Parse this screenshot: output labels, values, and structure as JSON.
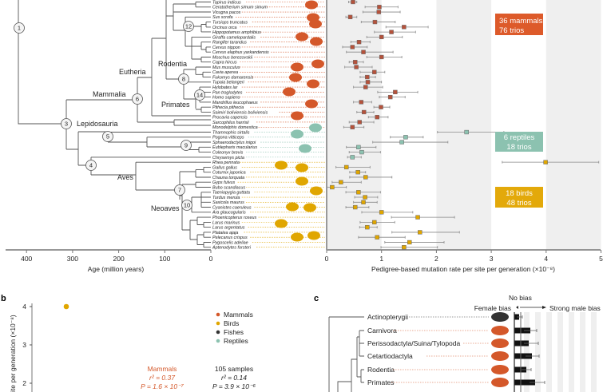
{
  "colors": {
    "mammals": "#d4582a",
    "reptiles": "#8cc2b0",
    "birds": "#e0a600",
    "fishes": "#333333",
    "box_mammal": "#b5523b",
    "band": "#efefef"
  },
  "panel_a": {
    "node_labels": [
      "1",
      "3",
      "4",
      "5",
      "6",
      "7",
      "8",
      "9",
      "10",
      "12",
      "14"
    ],
    "clades": {
      "eutheria": "Eutheria",
      "mammalia": "Mammalia",
      "lepidosauria": "Lepidosauria",
      "rodentia": "Rodentia",
      "primates": "Primates",
      "aves": "Aves",
      "neoaves": "Neoaves"
    },
    "age_axis": {
      "title": "Age (million years)",
      "ticks": [
        "400",
        "300",
        "200",
        "100",
        "0"
      ]
    },
    "badges": {
      "mammals": [
        "36 mammals",
        "76 trios"
      ],
      "reptiles": [
        "6 reptiles",
        "18 trios"
      ],
      "birds": [
        "18 birds",
        "48 trios"
      ]
    }
  },
  "chart_data": [
    {
      "type": "box",
      "xlabel": "Pedigree-based mutation rate per site per generation (×10⁻⁸)",
      "xlim": [
        0,
        5
      ],
      "xticks": [
        "0",
        "1",
        "2",
        "3",
        "4",
        "5"
      ],
      "grid": "alternating bands",
      "species": [
        {
          "name": "Tapirus indicus",
          "group": "mammals",
          "median": 0.48,
          "low": 0.4,
          "high": 0.55
        },
        {
          "name": "Ceratotherium simum simum",
          "group": "mammals",
          "median": 0.96,
          "low": 0.7,
          "high": 1.3
        },
        {
          "name": "Vicugna pacos",
          "group": "mammals",
          "median": 0.95,
          "low": 0.66,
          "high": 1.34
        },
        {
          "name": "Sus scrofa",
          "group": "mammals",
          "median": 0.43,
          "low": 0.35,
          "high": 0.55
        },
        {
          "name": "Tursiops truncatus",
          "group": "mammals",
          "median": 0.88,
          "low": 0.63,
          "high": 1.25
        },
        {
          "name": "Orcinus orca",
          "group": "mammals",
          "median": 1.41,
          "low": 1.08,
          "high": 1.85
        },
        {
          "name": "Hippopotamus amphibius",
          "group": "mammals",
          "median": 1.18,
          "low": 0.87,
          "high": 1.62
        },
        {
          "name": "Giraffa camelopardalis",
          "group": "mammals",
          "median": 1.0,
          "low": 0.73,
          "high": 1.38
        },
        {
          "name": "Rangifer tarandus",
          "group": "mammals",
          "median": 0.59,
          "low": 0.44,
          "high": 0.79
        },
        {
          "name": "Cervus nippon",
          "group": "mammals",
          "median": 0.47,
          "low": 0.29,
          "high": 0.74
        },
        {
          "name": "Cervus elaphus yarkandensis",
          "group": "mammals",
          "median": 0.67,
          "low": 0.36,
          "high": 1.21
        },
        {
          "name": "Moschus berezovskii",
          "group": "mammals",
          "median": 1.0,
          "low": 0.73,
          "high": 1.37
        },
        {
          "name": "Capra hircus",
          "group": "mammals",
          "median": 0.52,
          "low": 0.41,
          "high": 0.67
        },
        {
          "name": "Mus musculus",
          "group": "mammals",
          "median": 0.54,
          "low": 0.33,
          "high": 0.83
        },
        {
          "name": "Cavia aperea",
          "group": "mammals",
          "median": 0.87,
          "low": 0.61,
          "high": 1.06
        },
        {
          "name": "Fukomys damarensis",
          "group": "mammals",
          "median": 0.74,
          "low": 0.61,
          "high": 0.89
        },
        {
          "name": "Tupaia belangeri",
          "group": "mammals",
          "median": 0.75,
          "low": 0.61,
          "high": 1.0
        },
        {
          "name": "Hylobates lar",
          "group": "mammals",
          "median": 0.71,
          "low": 0.49,
          "high": 1.02
        },
        {
          "name": "Pan troglodytes",
          "group": "mammals",
          "median": 1.25,
          "low": 0.93,
          "high": 1.66
        },
        {
          "name": "Homo sapiens",
          "group": "mammals",
          "median": 1.16,
          "low": 0.96,
          "high": 1.43
        },
        {
          "name": "Mandrillus leucophaeus",
          "group": "mammals",
          "median": 0.63,
          "low": 0.49,
          "high": 0.82
        },
        {
          "name": "Pithecia pithecia",
          "group": "mammals",
          "median": 0.99,
          "low": 0.86,
          "high": 1.15
        },
        {
          "name": "Saimiri boliviensis boliviensis",
          "group": "mammals",
          "median": 0.68,
          "low": 0.55,
          "high": 0.86
        },
        {
          "name": "Procavia capensis",
          "group": "mammals",
          "median": 0.92,
          "low": 0.76,
          "high": 1.12
        },
        {
          "name": "Sarcophilus harrisii",
          "group": "mammals",
          "median": 0.6,
          "low": 0.41,
          "high": 0.86
        },
        {
          "name": "Monodelphis domestica",
          "group": "mammals",
          "median": 0.47,
          "low": 0.31,
          "high": 0.68
        },
        {
          "name": "Thamnophis sirtalis",
          "group": "reptiles",
          "median": 2.55,
          "low": 2.02,
          "high": 3.23
        },
        {
          "name": "Pogona vitticeps",
          "group": "reptiles",
          "median": 1.44,
          "low": 1.16,
          "high": 1.76
        },
        {
          "name": "Sphaerodactylus inigoi",
          "group": "reptiles",
          "median": 1.37,
          "low": 0.84,
          "high": 2.21
        },
        {
          "name": "Eublepharis macularius",
          "group": "reptiles",
          "median": 0.58,
          "low": 0.36,
          "high": 0.9
        },
        {
          "name": "Coleonyx brevis",
          "group": "reptiles",
          "median": 0.64,
          "low": 0.41,
          "high": 0.98
        },
        {
          "name": "Chrysemys picta",
          "group": "reptiles",
          "median": 0.47,
          "low": 0.38,
          "high": 0.63
        },
        {
          "name": "Rhea pennata",
          "group": "birds",
          "median": 3.99,
          "low": 3.2,
          "high": 4.96
        },
        {
          "name": "Gallus gallus",
          "group": "birds",
          "median": 0.36,
          "low": 0.17,
          "high": 0.79
        },
        {
          "name": "Coturnix japonica",
          "group": "birds",
          "median": 0.57,
          "low": 0.42,
          "high": 0.71
        },
        {
          "name": "Chauna torquata",
          "group": "birds",
          "median": 0.71,
          "low": 0.42,
          "high": 1.19
        },
        {
          "name": "Gyps fulvus",
          "group": "birds",
          "median": 0.26,
          "low": 0.1,
          "high": 0.63
        },
        {
          "name": "Bubo scandiacus",
          "group": "birds",
          "median": 0.1,
          "low": 0.01,
          "high": 0.36
        },
        {
          "name": "Taeniopygia guttata",
          "group": "birds",
          "median": 0.58,
          "low": 0.35,
          "high": 0.98
        },
        {
          "name": "Turdus merula",
          "group": "birds",
          "median": 0.7,
          "low": 0.51,
          "high": 0.93
        },
        {
          "name": "Saxicola maurus",
          "group": "birds",
          "median": 0.67,
          "low": 0.49,
          "high": 0.92
        },
        {
          "name": "Cyanistes caeruleus",
          "group": "birds",
          "median": 0.52,
          "low": 0.35,
          "high": 0.77
        },
        {
          "name": "Ara glaucogularis",
          "group": "birds",
          "median": 1.0,
          "low": 0.64,
          "high": 1.57
        },
        {
          "name": "Phoenicopterus roseus",
          "group": "birds",
          "median": 1.66,
          "low": 1.18,
          "high": 2.33
        },
        {
          "name": "Larus marinus",
          "group": "birds",
          "median": 0.87,
          "low": 0.61,
          "high": 1.24
        },
        {
          "name": "Larus argentatus",
          "group": "birds",
          "median": 0.74,
          "low": 0.6,
          "high": 0.92
        },
        {
          "name": "Platalea ajaja",
          "group": "birds",
          "median": 1.7,
          "low": 1.19,
          "high": 2.42
        },
        {
          "name": "Pelecanus crispus",
          "group": "birds",
          "median": 0.92,
          "low": 0.58,
          "high": 1.43
        },
        {
          "name": "Pygoscelis adeliae",
          "group": "birds",
          "median": 1.51,
          "low": 1.06,
          "high": 2.14
        },
        {
          "name": "Aptenodytes forsteri",
          "group": "birds",
          "median": 1.41,
          "low": 0.99,
          "high": 2.02
        }
      ]
    },
    {
      "type": "scatter",
      "ylabel": "ite per generation (×10⁻⁸)",
      "yticks": [
        "4",
        "3",
        "2"
      ],
      "points": [
        {
          "group": "birds",
          "y": 4.0
        }
      ],
      "legend": [
        "Mammals",
        "Birds",
        "Fishes",
        "Reptiles"
      ],
      "legend_position": "top-right",
      "stats_mammals": [
        "Mammals",
        "r² = 0.37",
        "P = 1.6 × 10⁻⁷"
      ],
      "stats_all": [
        "105 samples",
        "r² = 0.14",
        "P = 3.9 × 10⁻⁶"
      ]
    },
    {
      "type": "bar",
      "header": {
        "no_bias": "No bias",
        "female_bias": "Female bias",
        "male_bias": "Strong male bias"
      },
      "categories": [
        "Actinopterygii",
        "Carnivora",
        "Perissodactyla/Suina/Tylopoda",
        "Cetartiodactyla",
        "Rodentia",
        "Primates"
      ],
      "groups": [
        "fishes",
        "mammals",
        "mammals",
        "mammals",
        "mammals",
        "mammals"
      ],
      "relative_bias": [
        6,
        20,
        18,
        22,
        15,
        26
      ],
      "err_low": [
        3,
        12,
        12,
        14,
        9,
        19
      ],
      "err_high": [
        10,
        28,
        30,
        31,
        21,
        38
      ]
    }
  ],
  "panel_labels": {
    "b": "b",
    "c": "c"
  }
}
